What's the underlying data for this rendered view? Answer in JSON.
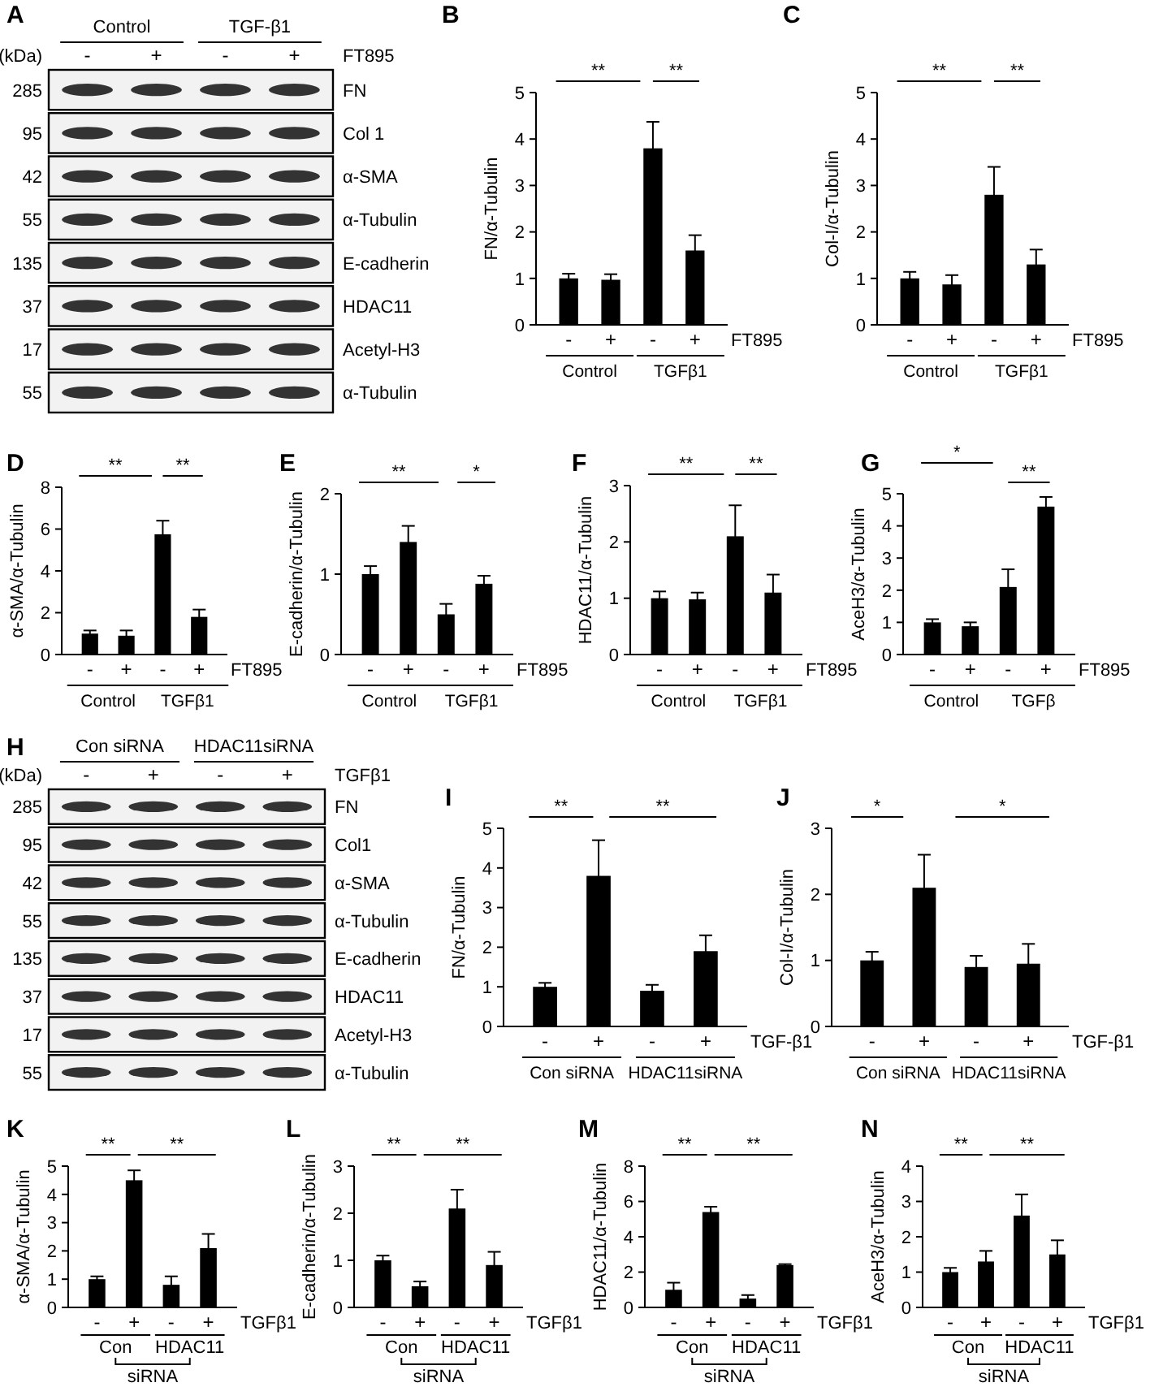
{
  "chart_data": [
    {
      "type": "other",
      "title": "A",
      "xlabel": "FT895",
      "ylabel": "(kDa)",
      "categories": [
        "-",
        "+",
        "-",
        "+"
      ],
      "y_categories": [
        "FN",
        "Col 1",
        "α-SMA",
        "α-Tubulin",
        "E-cadherin",
        "HDAC11",
        "Acetyl-H3",
        "α-Tubulin"
      ],
      "y2_categories": [
        "285",
        "95",
        "42",
        "55",
        "135",
        "37",
        "17",
        "55"
      ],
      "annotations": [
        "Control",
        "TGF-β1"
      ]
    },
    {
      "type": "bar",
      "title": "B",
      "ylabel": "FN/α-Tubulin",
      "xlabel": "FT895",
      "categories": [
        "-",
        "+",
        "-",
        "+"
      ],
      "values": [
        1.0,
        0.97,
        3.8,
        1.6
      ],
      "errors": [
        0.1,
        0.12,
        0.57,
        0.33
      ],
      "color": "#000000",
      "ylim": [
        0,
        5
      ],
      "yticks": [
        0,
        1,
        2,
        3,
        4,
        5
      ],
      "annotations": [
        "**",
        "**",
        "Control",
        "TGFβ1"
      ]
    },
    {
      "type": "bar",
      "title": "C",
      "ylabel": "Col-I/α-Tubulin",
      "xlabel": "FT895",
      "categories": [
        "-",
        "+",
        "-",
        "+"
      ],
      "values": [
        1.0,
        0.87,
        2.8,
        1.3
      ],
      "errors": [
        0.14,
        0.2,
        0.6,
        0.32
      ],
      "color": "#000000",
      "ylim": [
        0,
        5
      ],
      "yticks": [
        0,
        1,
        2,
        3,
        4,
        5
      ],
      "annotations": [
        "**",
        "**",
        "Control",
        "TGFβ1"
      ]
    },
    {
      "type": "bar",
      "title": "D",
      "ylabel": "α-SMA/α-Tubulin",
      "xlabel": "FT895",
      "categories": [
        "-",
        "+",
        "-",
        "+"
      ],
      "values": [
        1.0,
        0.9,
        5.75,
        1.8
      ],
      "errors": [
        0.15,
        0.25,
        0.65,
        0.35
      ],
      "color": "#000000",
      "ylim": [
        0,
        8
      ],
      "yticks": [
        0,
        2,
        4,
        6,
        8
      ],
      "annotations": [
        "**",
        "**",
        "Control",
        "TGFβ1"
      ]
    },
    {
      "type": "bar",
      "title": "E",
      "ylabel": "E-cadherin/α-Tubulin",
      "xlabel": "FT895",
      "categories": [
        "-",
        "+",
        "-",
        "+"
      ],
      "values": [
        1.0,
        1.4,
        0.5,
        0.88
      ],
      "errors": [
        0.1,
        0.2,
        0.13,
        0.1
      ],
      "color": "#000000",
      "ylim": [
        0,
        2
      ],
      "yticks": [
        0,
        1,
        2
      ],
      "annotations": [
        "**",
        "*",
        "Control",
        "TGFβ1"
      ]
    },
    {
      "type": "bar",
      "title": "F",
      "ylabel": "HDAC11/α-Tubulin",
      "xlabel": "FT895",
      "categories": [
        "-",
        "+",
        "-",
        "+"
      ],
      "values": [
        1.0,
        0.98,
        2.1,
        1.1
      ],
      "errors": [
        0.12,
        0.12,
        0.55,
        0.32
      ],
      "color": "#000000",
      "ylim": [
        0,
        3
      ],
      "yticks": [
        0,
        1,
        2,
        3
      ],
      "annotations": [
        "**",
        "**",
        "Control",
        "TGFβ1"
      ]
    },
    {
      "type": "bar",
      "title": "G",
      "ylabel": "AceH3/α-Tubulin",
      "xlabel": "FT895",
      "categories": [
        "-",
        "+",
        "-",
        "+"
      ],
      "values": [
        1.0,
        0.88,
        2.1,
        4.6
      ],
      "errors": [
        0.1,
        0.12,
        0.55,
        0.3
      ],
      "color": "#000000",
      "ylim": [
        0,
        5
      ],
      "yticks": [
        0,
        1,
        2,
        3,
        4,
        5
      ],
      "annotations": [
        "*",
        "**",
        "Control",
        "TGFβ"
      ]
    },
    {
      "type": "other",
      "title": "H",
      "xlabel": "TGFβ1",
      "ylabel": "(kDa)",
      "categories": [
        "-",
        "+",
        "-",
        "+"
      ],
      "y_categories": [
        "FN",
        "Col1",
        "α-SMA",
        "α-Tubulin",
        "E-cadherin",
        "HDAC11",
        "Acetyl-H3",
        "α-Tubulin"
      ],
      "y2_categories": [
        "285",
        "95",
        "42",
        "55",
        "135",
        "37",
        "17",
        "55"
      ],
      "annotations": [
        "Con siRNA",
        "HDAC11siRNA"
      ]
    },
    {
      "type": "bar",
      "title": "I",
      "ylabel": "FN/α-Tubulin",
      "xlabel": "TGF-β1",
      "categories": [
        "-",
        "+",
        "-",
        "+"
      ],
      "values": [
        1.0,
        3.8,
        0.9,
        1.9
      ],
      "errors": [
        0.1,
        0.9,
        0.15,
        0.4
      ],
      "color": "#000000",
      "ylim": [
        0,
        5
      ],
      "yticks": [
        0,
        1,
        2,
        3,
        4,
        5
      ],
      "annotations": [
        "**",
        "**",
        "Con siRNA",
        "HDAC11siRNA"
      ]
    },
    {
      "type": "bar",
      "title": "J",
      "ylabel": "Col-I/α-Tubulin",
      "xlabel": "TGF-β1",
      "categories": [
        "-",
        "+",
        "-",
        "+"
      ],
      "values": [
        1.0,
        2.1,
        0.9,
        0.95
      ],
      "errors": [
        0.13,
        0.5,
        0.17,
        0.3
      ],
      "color": "#000000",
      "ylim": [
        0,
        3
      ],
      "yticks": [
        0,
        1,
        2,
        3
      ],
      "annotations": [
        "*",
        "*",
        "Con siRNA",
        "HDAC11siRNA"
      ]
    },
    {
      "type": "bar",
      "title": "K",
      "ylabel": "α-SMA/α-Tubulin",
      "xlabel": "TGFβ1",
      "categories": [
        "-",
        "+",
        "-",
        "+"
      ],
      "values": [
        1.0,
        4.5,
        0.8,
        2.1
      ],
      "errors": [
        0.1,
        0.35,
        0.3,
        0.5
      ],
      "color": "#000000",
      "ylim": [
        0,
        5
      ],
      "yticks": [
        0,
        1,
        2,
        3,
        4,
        5
      ],
      "annotations": [
        "**",
        "**",
        "Con",
        "HDAC11",
        "siRNA"
      ]
    },
    {
      "type": "bar",
      "title": "L",
      "ylabel": "E-cadherin/α-Tubulin",
      "xlabel": "TGFβ1",
      "categories": [
        "-",
        "+",
        "-",
        "+"
      ],
      "values": [
        1.0,
        0.45,
        2.1,
        0.9
      ],
      "errors": [
        0.1,
        0.1,
        0.4,
        0.28
      ],
      "color": "#000000",
      "ylim": [
        0,
        3
      ],
      "yticks": [
        0,
        1,
        2,
        3
      ],
      "annotations": [
        "**",
        "**",
        "Con",
        "HDAC11",
        "siRNA"
      ]
    },
    {
      "type": "bar",
      "title": "M",
      "ylabel": "HDAC11/α-Tubulin",
      "xlabel": "TGFβ1",
      "categories": [
        "-",
        "+",
        "-",
        "+"
      ],
      "values": [
        1.0,
        5.4,
        0.5,
        2.4
      ],
      "errors": [
        0.4,
        0.3,
        0.2,
        0.05
      ],
      "color": "#000000",
      "ylim": [
        0,
        8
      ],
      "yticks": [
        0,
        2,
        4,
        6,
        8
      ],
      "annotations": [
        "**",
        "**",
        "Con",
        "HDAC11",
        "siRNA"
      ]
    },
    {
      "type": "bar",
      "title": "N",
      "ylabel": "AceH3/α-Tubulin",
      "xlabel": "TGFβ1",
      "categories": [
        "-",
        "+",
        "-",
        "+"
      ],
      "values": [
        1.0,
        1.3,
        2.6,
        1.5
      ],
      "errors": [
        0.12,
        0.3,
        0.6,
        0.4
      ],
      "color": "#000000",
      "ylim": [
        0,
        4
      ],
      "yticks": [
        0,
        1,
        2,
        3,
        4
      ],
      "annotations": [
        "**",
        "**",
        "Con",
        "HDAC11",
        "siRNA"
      ]
    }
  ]
}
